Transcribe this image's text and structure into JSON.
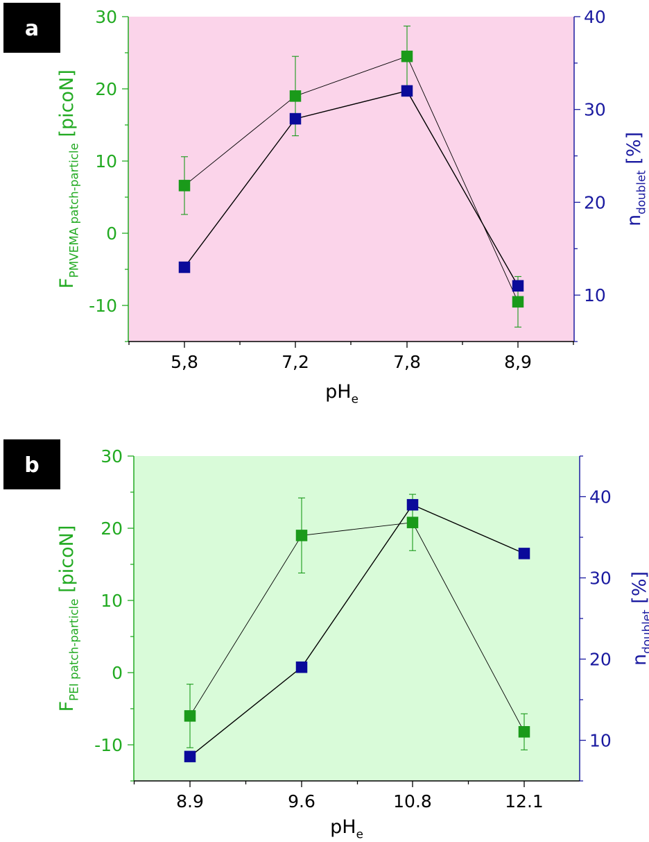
{
  "figure": {
    "colors": {
      "left_axis": "#22aa22",
      "right_axis": "#1a1aa0",
      "series_left": "#1a9a1a",
      "series_right": "#0a0a9a",
      "text": "#000000"
    }
  },
  "chart_data": [
    {
      "type": "line",
      "panel_label": "a",
      "background": "#fbd4ea",
      "xlabel": {
        "main": "pH",
        "sub": "e"
      },
      "ylabel_left": {
        "main": "F",
        "sub": "PMVEMA patch-particle",
        "unit": " [picoN]"
      },
      "ylabel_right": {
        "main": "n",
        "sub": "doublet",
        "unit": " [%]"
      },
      "categories": [
        "5,8",
        "7,2",
        "7,8",
        "8,9"
      ],
      "ylim_left": [
        -15,
        30
      ],
      "ylim_right": [
        5,
        40
      ],
      "left_ticks": [
        "30",
        "20",
        "10",
        "0",
        "-10"
      ],
      "left_tick_values": [
        30,
        20,
        10,
        0,
        -10
      ],
      "right_ticks": [
        "40",
        "30",
        "20",
        "10"
      ],
      "right_tick_values": [
        40,
        30,
        20,
        10
      ],
      "series": [
        {
          "axis": "left",
          "values": [
            6.6,
            19.0,
            24.5,
            -9.5
          ],
          "err": [
            4.0,
            5.5,
            4.2,
            3.5
          ]
        },
        {
          "axis": "right",
          "values": [
            13.0,
            29.0,
            32.0,
            11.0
          ]
        }
      ]
    },
    {
      "type": "line",
      "panel_label": "b",
      "background": "#d9fbd9",
      "xlabel": {
        "main": "pH",
        "sub": "e"
      },
      "ylabel_left": {
        "main": "F",
        "sub": "PEI patch-particle",
        "unit": " [picoN]"
      },
      "ylabel_right": {
        "main": "n",
        "sub": "doublet",
        "unit": " [%]"
      },
      "categories": [
        "8.9",
        "9.6",
        "10.8",
        "12.1"
      ],
      "ylim_left": [
        -15,
        30
      ],
      "ylim_right": [
        5,
        45
      ],
      "left_ticks": [
        "30",
        "20",
        "10",
        "0",
        "-10"
      ],
      "left_tick_values": [
        30,
        20,
        10,
        0,
        -10
      ],
      "right_ticks": [
        "40",
        "30",
        "20",
        "10"
      ],
      "right_tick_values": [
        40,
        30,
        20,
        10
      ],
      "series": [
        {
          "axis": "left",
          "values": [
            -6.0,
            19.0,
            20.8,
            -8.2
          ],
          "err": [
            4.4,
            5.2,
            3.9,
            2.5
          ]
        },
        {
          "axis": "right",
          "values": [
            8.0,
            19.0,
            39.0,
            33.0
          ]
        }
      ]
    }
  ]
}
